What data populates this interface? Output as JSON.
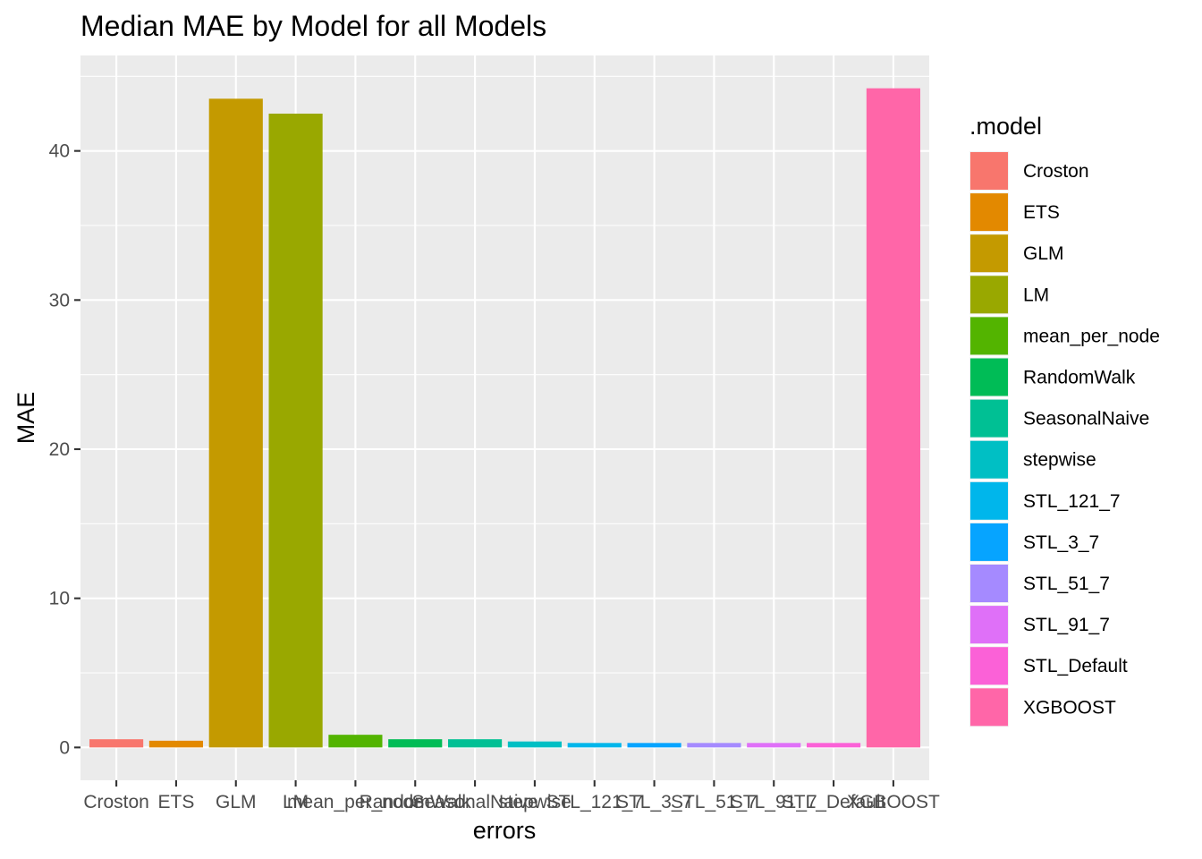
{
  "chart_data": {
    "type": "bar",
    "title": "Median MAE by Model for all Models",
    "xlabel": "errors",
    "ylabel": "MAE",
    "categories": [
      "Croston",
      "ETS",
      "GLM",
      "LM",
      "mean_per_node",
      "RandomWalk",
      "SeasonalNaive",
      "stepwise",
      "STL_121_7",
      "STL_3_7",
      "STL_51_7",
      "STL_91_7",
      "STL_Default",
      "XGBOOST"
    ],
    "values": [
      0.55,
      0.45,
      43.5,
      42.5,
      0.85,
      0.55,
      0.55,
      0.4,
      0.3,
      0.3,
      0.3,
      0.3,
      0.3,
      44.2
    ],
    "colors": [
      "#F8766D",
      "#E38900",
      "#C49A00",
      "#99A800",
      "#53B400",
      "#00BC56",
      "#00C094",
      "#00BFC4",
      "#00B6EB",
      "#06A4FF",
      "#A58AFF",
      "#DF70F8",
      "#FB61D7",
      "#FF66A8"
    ],
    "yticks": [
      0,
      10,
      20,
      30,
      40
    ],
    "ylim": [
      -2.2,
      46.4
    ],
    "grid": true,
    "legend": {
      "title": ".model",
      "position": "right"
    }
  }
}
